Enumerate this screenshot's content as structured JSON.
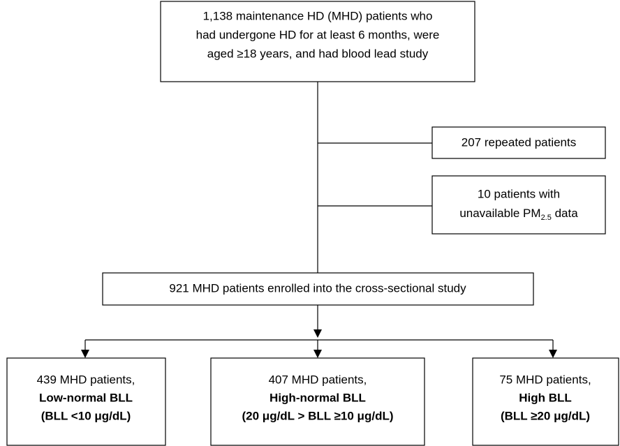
{
  "nodes": [
    {
      "lines": [
        "1,138 maintenance HD (MHD) patients who",
        "had undergone HD for at least 6 months, were",
        "aged ≥18 years, and had blood lead study"
      ]
    },
    {
      "lines": [
        "207 repeated patients"
      ]
    },
    {
      "lines": [
        "10 patients with"
      ],
      "sub_line": {
        "before": "unavailable PM",
        "sub": "2.5",
        "after": " data"
      }
    },
    {
      "lines": [
        "921 MHD patients enrolled into the cross-sectional study"
      ]
    }
  ],
  "groups": [
    {
      "count": "439 MHD patients,",
      "label": "Low-normal BLL",
      "range": "(BLL <10 μg/dL)"
    },
    {
      "count": "407 MHD patients,",
      "label": "High-normal BLL",
      "range": "(20 μg/dL > BLL ≥10 μg/dL)"
    },
    {
      "count": "75 MHD patients,",
      "label": "High BLL",
      "range": "(BLL ≥20 μg/dL)"
    }
  ]
}
